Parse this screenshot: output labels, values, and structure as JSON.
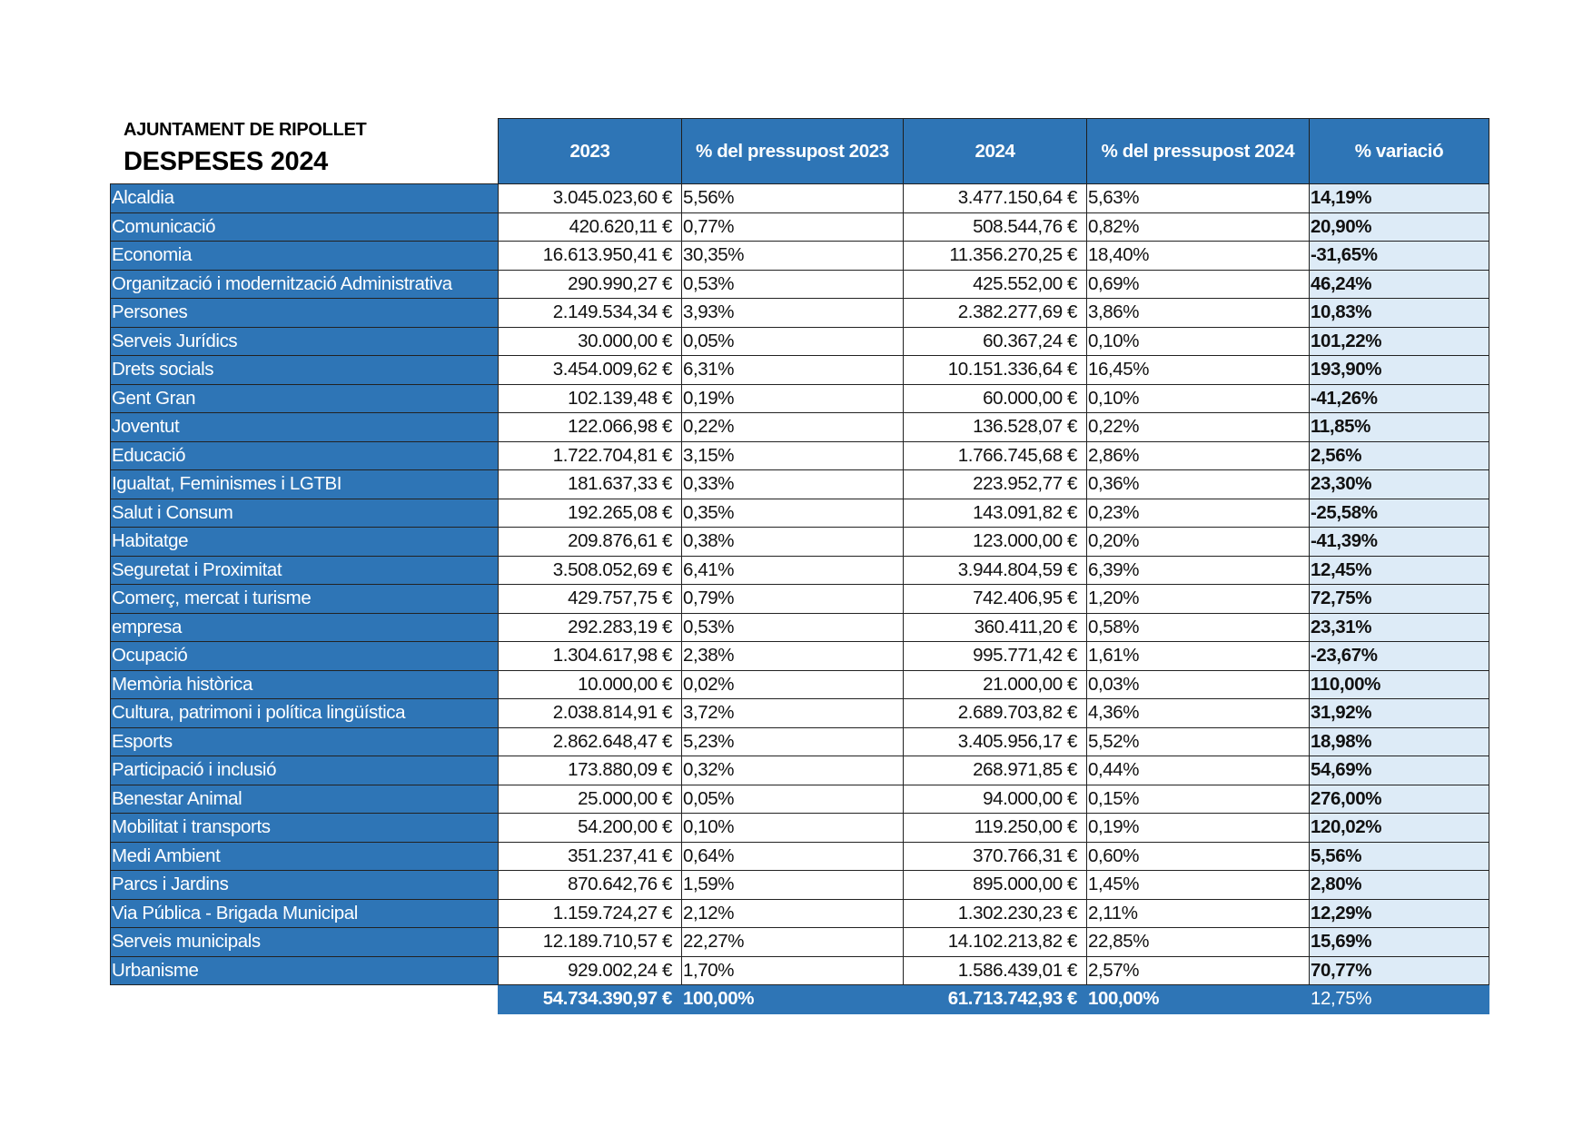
{
  "header": {
    "organization": "AJUNTAMENT DE RIPOLLET",
    "title": "DESPESES 2024"
  },
  "colors": {
    "header_blue": "#2E75B6",
    "variation_bg": "#DDEBF7"
  },
  "columns": [
    "2023",
    "% del pressupost 2023",
    "2024",
    "% del pressupost 2024",
    "% variació"
  ],
  "rows": [
    {
      "area": "Alcaldia",
      "y2023": "3.045.023,60 €",
      "p2023": "5,56%",
      "y2024": "3.477.150,64 €",
      "p2024": "5,63%",
      "variation": "14,19%"
    },
    {
      "area": "Comunicació",
      "y2023": "420.620,11 €",
      "p2023": "0,77%",
      "y2024": "508.544,76 €",
      "p2024": "0,82%",
      "variation": "20,90%"
    },
    {
      "area": "Economia",
      "y2023": "16.613.950,41 €",
      "p2023": "30,35%",
      "y2024": "11.356.270,25 €",
      "p2024": "18,40%",
      "variation": "-31,65%"
    },
    {
      "area": "Organització i modernització Administrativa",
      "y2023": "290.990,27 €",
      "p2023": "0,53%",
      "y2024": "425.552,00 €",
      "p2024": "0,69%",
      "variation": "46,24%"
    },
    {
      "area": "Persones",
      "y2023": "2.149.534,34 €",
      "p2023": "3,93%",
      "y2024": "2.382.277,69 €",
      "p2024": "3,86%",
      "variation": "10,83%"
    },
    {
      "area": "Serveis Jurídics",
      "y2023": "30.000,00 €",
      "p2023": "0,05%",
      "y2024": "60.367,24 €",
      "p2024": "0,10%",
      "variation": "101,22%"
    },
    {
      "area": "Drets socials",
      "y2023": "3.454.009,62 €",
      "p2023": "6,31%",
      "y2024": "10.151.336,64 €",
      "p2024": "16,45%",
      "variation": "193,90%"
    },
    {
      "area": "Gent Gran",
      "y2023": "102.139,48 €",
      "p2023": "0,19%",
      "y2024": "60.000,00 €",
      "p2024": "0,10%",
      "variation": "-41,26%"
    },
    {
      "area": "Joventut",
      "y2023": "122.066,98 €",
      "p2023": "0,22%",
      "y2024": "136.528,07 €",
      "p2024": "0,22%",
      "variation": "11,85%"
    },
    {
      "area": "Educació",
      "y2023": "1.722.704,81 €",
      "p2023": "3,15%",
      "y2024": "1.766.745,68 €",
      "p2024": "2,86%",
      "variation": "2,56%"
    },
    {
      "area": "Igualtat, Feminismes i LGTBI",
      "y2023": "181.637,33 €",
      "p2023": "0,33%",
      "y2024": "223.952,77 €",
      "p2024": "0,36%",
      "variation": "23,30%"
    },
    {
      "area": "Salut i Consum",
      "y2023": "192.265,08 €",
      "p2023": "0,35%",
      "y2024": "143.091,82 €",
      "p2024": "0,23%",
      "variation": "-25,58%"
    },
    {
      "area": "Habitatge",
      "y2023": "209.876,61 €",
      "p2023": "0,38%",
      "y2024": "123.000,00 €",
      "p2024": "0,20%",
      "variation": "-41,39%"
    },
    {
      "area": "Seguretat i Proximitat",
      "y2023": "3.508.052,69 €",
      "p2023": "6,41%",
      "y2024": "3.944.804,59 €",
      "p2024": "6,39%",
      "variation": "12,45%"
    },
    {
      "area": "Comerç, mercat i turisme",
      "y2023": "429.757,75 €",
      "p2023": "0,79%",
      "y2024": "742.406,95 €",
      "p2024": "1,20%",
      "variation": "72,75%"
    },
    {
      "area": "empresa",
      "y2023": "292.283,19 €",
      "p2023": "0,53%",
      "y2024": "360.411,20 €",
      "p2024": "0,58%",
      "variation": "23,31%"
    },
    {
      "area": "Ocupació",
      "y2023": "1.304.617,98 €",
      "p2023": "2,38%",
      "y2024": "995.771,42 €",
      "p2024": "1,61%",
      "variation": "-23,67%"
    },
    {
      "area": "Memòria històrica",
      "y2023": "10.000,00 €",
      "p2023": "0,02%",
      "y2024": "21.000,00 €",
      "p2024": "0,03%",
      "variation": "110,00%"
    },
    {
      "area": "Cultura, patrimoni i política lingüística",
      "y2023": "2.038.814,91 €",
      "p2023": "3,72%",
      "y2024": "2.689.703,82 €",
      "p2024": "4,36%",
      "variation": "31,92%"
    },
    {
      "area": "Esports",
      "y2023": "2.862.648,47 €",
      "p2023": "5,23%",
      "y2024": "3.405.956,17 €",
      "p2024": "5,52%",
      "variation": "18,98%"
    },
    {
      "area": "Participació i inclusió",
      "y2023": "173.880,09 €",
      "p2023": "0,32%",
      "y2024": "268.971,85 €",
      "p2024": "0,44%",
      "variation": "54,69%"
    },
    {
      "area": "Benestar Animal",
      "y2023": "25.000,00 €",
      "p2023": "0,05%",
      "y2024": "94.000,00 €",
      "p2024": "0,15%",
      "variation": "276,00%"
    },
    {
      "area": "Mobilitat i transports",
      "y2023": "54.200,00 €",
      "p2023": "0,10%",
      "y2024": "119.250,00 €",
      "p2024": "0,19%",
      "variation": "120,02%"
    },
    {
      "area": "Medi Ambient",
      "y2023": "351.237,41 €",
      "p2023": "0,64%",
      "y2024": "370.766,31 €",
      "p2024": "0,60%",
      "variation": "5,56%"
    },
    {
      "area": "Parcs i Jardins",
      "y2023": "870.642,76 €",
      "p2023": "1,59%",
      "y2024": "895.000,00 €",
      "p2024": "1,45%",
      "variation": "2,80%"
    },
    {
      "area": "Via Pública - Brigada Municipal",
      "y2023": "1.159.724,27 €",
      "p2023": "2,12%",
      "y2024": "1.302.230,23 €",
      "p2024": "2,11%",
      "variation": "12,29%"
    },
    {
      "area": "Serveis municipals",
      "y2023": "12.189.710,57 €",
      "p2023": "22,27%",
      "y2024": "14.102.213,82 €",
      "p2024": "22,85%",
      "variation": "15,69%"
    },
    {
      "area": "Urbanisme",
      "y2023": "929.002,24 €",
      "p2023": "1,70%",
      "y2024": "1.586.439,01 €",
      "p2024": "2,57%",
      "variation": "70,77%"
    }
  ],
  "total": {
    "y2023": "54.734.390,97 €",
    "p2023": "100,00%",
    "y2024": "61.713.742,93 €",
    "p2024": "100,00%",
    "variation": "12,75%"
  }
}
